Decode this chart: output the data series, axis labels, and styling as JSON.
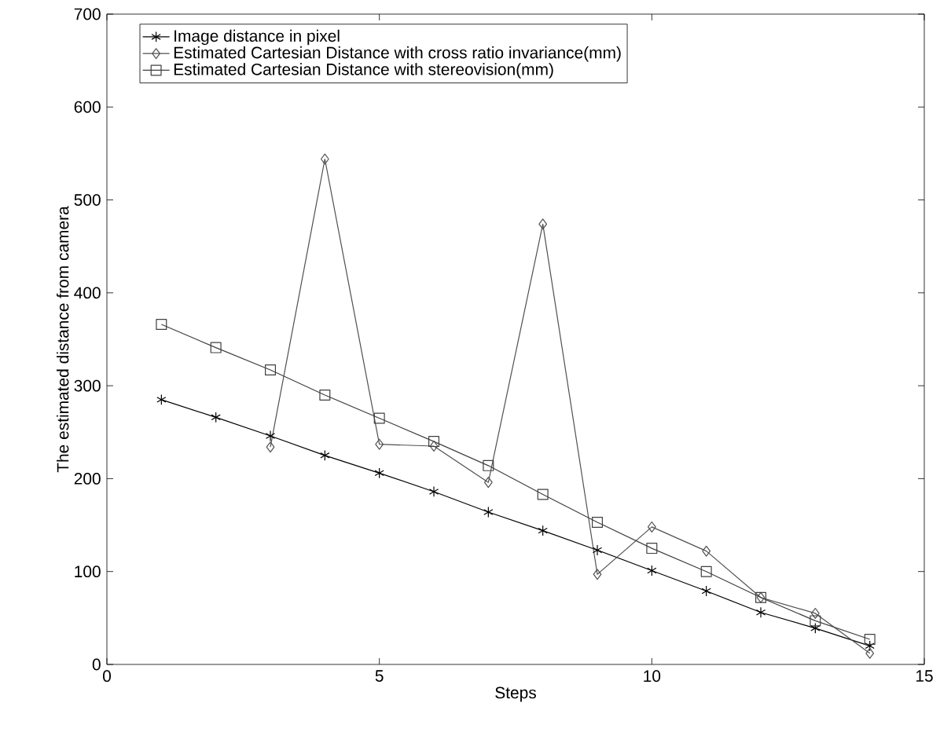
{
  "chart_data": {
    "type": "line",
    "xlabel": "Steps",
    "ylabel": "The estimated distance from camera",
    "xlim": [
      0,
      15
    ],
    "ylim": [
      0,
      700
    ],
    "xticks": [
      0,
      5,
      10,
      15
    ],
    "yticks": [
      0,
      100,
      200,
      300,
      400,
      500,
      600,
      700
    ],
    "grid": false,
    "legend": "top left",
    "x": [
      1,
      2,
      3,
      4,
      5,
      6,
      7,
      8,
      9,
      10,
      11,
      12,
      13,
      14
    ],
    "series": [
      {
        "name": "Image distance in pixel",
        "color": "#000000",
        "marker": "cross",
        "values": [
          285,
          266,
          246,
          225,
          206,
          186,
          164,
          144,
          123,
          101,
          79,
          56,
          39,
          20
        ]
      },
      {
        "name": "Estimated Cartesian Distance  with cross ratio invariance(mm)",
        "color": "#505050",
        "marker": "diamond",
        "values": [
          null,
          null,
          234,
          544,
          237,
          235,
          196,
          474,
          97,
          148,
          122,
          72,
          55,
          12
        ]
      },
      {
        "name": "Estimated Cartesian Distance  with stereovision(mm)",
        "color": "#404040",
        "marker": "square",
        "values": [
          366,
          341,
          317,
          290,
          265,
          240,
          214,
          183,
          153,
          125,
          100,
          72,
          47,
          27
        ]
      }
    ]
  }
}
